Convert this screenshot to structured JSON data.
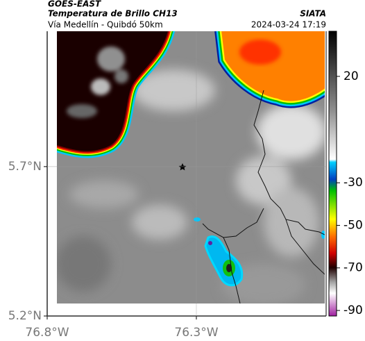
{
  "header": {
    "title": "GOES-EAST",
    "subtitle": "Temperatura de Brillo CH13",
    "route": "Vía Medellín - Quibdó 50km",
    "source": "SIATA",
    "timestamp": "2024-03-24 17:19"
  },
  "map": {
    "xlim": [
      -76.8,
      -75.865
    ],
    "ylim": [
      5.2,
      6.153
    ],
    "xticks": [
      {
        "value": -76.8,
        "label": "76.8°W"
      },
      {
        "value": -76.3,
        "label": "76.3°W"
      }
    ],
    "yticks": [
      {
        "value": 5.7,
        "label": "5.7°N"
      },
      {
        "value": 5.2,
        "label": "5.2°N"
      }
    ],
    "grid": true
  },
  "colorbar": {
    "lim": [
      -92.6,
      41.2
    ],
    "ticks": [
      20,
      -30,
      -50,
      -70,
      -90
    ]
  }
}
